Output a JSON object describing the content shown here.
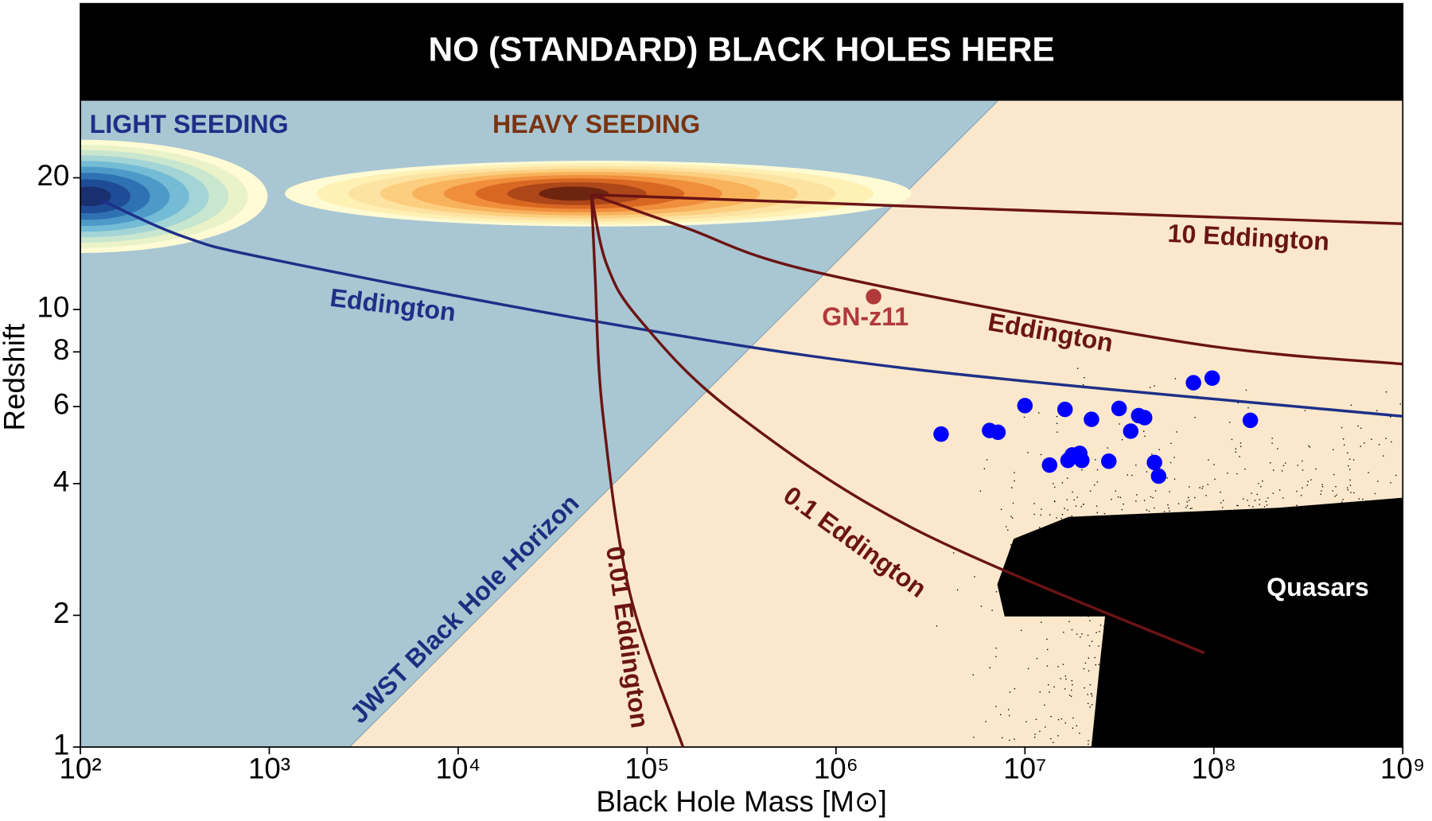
{
  "chart_data": {
    "type": "line",
    "title": "NO (STANDARD) BLACK HOLES HERE",
    "xlabel": "Black Hole Mass [M⊙]",
    "ylabel": "Redshift",
    "xscale": "log",
    "yscale": "log",
    "xlim": [
      100,
      1000000000
    ],
    "ylim": [
      1,
      50
    ],
    "xticks": [
      {
        "value": 100,
        "label": "10²"
      },
      {
        "value": 1000,
        "label": "10³"
      },
      {
        "value": 10000,
        "label": "10⁴"
      },
      {
        "value": 100000,
        "label": "10⁵"
      },
      {
        "value": 1000000,
        "label": "10⁶"
      },
      {
        "value": 10000000,
        "label": "10⁷"
      },
      {
        "value": 100000000,
        "label": "10⁸"
      },
      {
        "value": 1000000000,
        "label": "10⁹"
      }
    ],
    "yticks": [
      1,
      2,
      4,
      6,
      8,
      10,
      20
    ],
    "forbidden_zone_ymin": 30,
    "region_colors": {
      "unseen": "#a9c6d3",
      "seen": "#fbe8cc"
    },
    "horizon": {
      "name": "JWST Black Hole Horizon",
      "color": "#1a2f80",
      "x": [
        2660,
        7200000
      ],
      "values": [
        1,
        30
      ]
    },
    "series": [
      {
        "name": "Eddington",
        "color": "#1f2f88",
        "x": [
          128,
          347,
          1050,
          53000,
          2600000,
          1000000000
        ],
        "values": [
          17.8,
          14.7,
          13,
          9.4,
          7.3,
          5.7
        ]
      },
      {
        "name": "10 Eddington",
        "color": "#6b1414",
        "x": [
          50700,
          2600000,
          1000000000
        ],
        "values": [
          18.3,
          17.2,
          15.7
        ]
      },
      {
        "name": "Eddington",
        "color": "#6b1414",
        "x": [
          50700,
          158000,
          830000,
          72000000,
          1000000000
        ],
        "values": [
          18.3,
          15.4,
          12.1,
          8.4,
          7.5
        ]
      },
      {
        "name": "0.1 Eddington",
        "color": "#6b1414",
        "x": [
          50700,
          61000,
          91000,
          277000,
          2600000,
          89000000
        ],
        "values": [
          18.3,
          12.7,
          9.5,
          5.9,
          3.15,
          1.64
        ]
      },
      {
        "name": "0.01 Eddington",
        "color": "#6b1414",
        "x": [
          50700,
          53000,
          58000,
          81000,
          155000
        ],
        "values": [
          18.3,
          12.1,
          5.9,
          2.25,
          1
        ]
      }
    ],
    "points": {
      "color": "#0000ff",
      "x": [
        3600000,
        6500000,
        7200000,
        10000000,
        13500000,
        16300000,
        16900000,
        17800000,
        19500000,
        20000000,
        22500000,
        27800000,
        31500000,
        36300000,
        40000000,
        43000000,
        48500000,
        51000000,
        78000000,
        98000000,
        156000000
      ],
      "values": [
        5.19,
        5.29,
        5.24,
        6.03,
        4.41,
        5.91,
        4.52,
        4.65,
        4.69,
        4.52,
        5.61,
        4.5,
        5.94,
        5.27,
        5.72,
        5.66,
        4.47,
        4.16,
        6.8,
        6.97,
        5.58
      ]
    },
    "gn_z11": {
      "name": "GN-z11",
      "color": "#b03a3a",
      "x": 1580000,
      "value": 10.7
    },
    "annotations": [
      "LIGHT SEEDING",
      "HEAVY SEEDING",
      "Quasars"
    ]
  }
}
